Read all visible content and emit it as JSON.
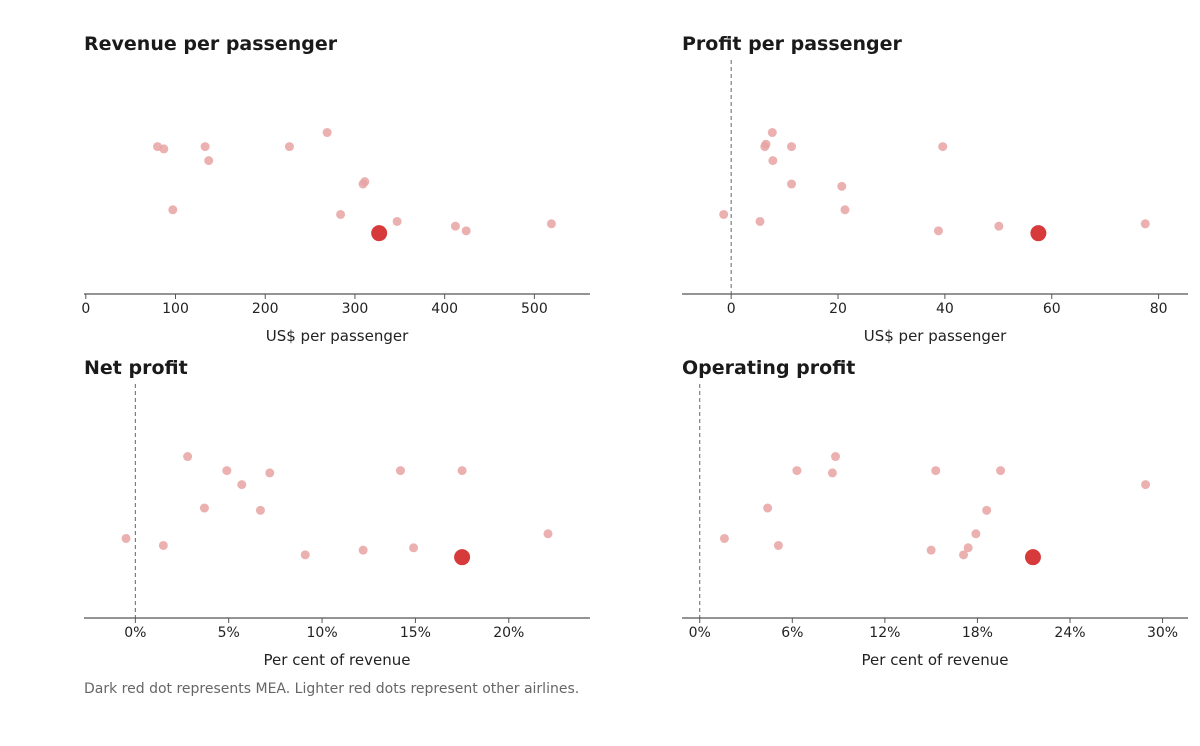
{
  "colors": {
    "highlight": "#d63a3a",
    "others": "#e8a3a3",
    "axis": "#555555",
    "zero_line": "#666666"
  },
  "footnote": "Dark red dot represents MEA. Lighter red dots represent other airlines.",
  "chart_data": [
    {
      "type": "scatter",
      "title": "Revenue per passenger",
      "xlabel": "US$ per passenger",
      "xlim": [
        -2,
        562
      ],
      "ylim": [
        0,
        1
      ],
      "x_ticks": [
        0,
        100,
        200,
        300,
        400,
        500
      ],
      "x_tick_labels": [
        "0",
        "100",
        "200",
        "300",
        "400",
        "500"
      ],
      "zero_line": false,
      "highlight": {
        "name": "MEA",
        "x": 327,
        "y": 0.26
      },
      "points": [
        {
          "x": 80,
          "y": 0.63
        },
        {
          "x": 87,
          "y": 0.62
        },
        {
          "x": 133,
          "y": 0.63
        },
        {
          "x": 137,
          "y": 0.57
        },
        {
          "x": 97,
          "y": 0.36
        },
        {
          "x": 227,
          "y": 0.63
        },
        {
          "x": 269,
          "y": 0.69
        },
        {
          "x": 309,
          "y": 0.47
        },
        {
          "x": 311,
          "y": 0.48
        },
        {
          "x": 284,
          "y": 0.34
        },
        {
          "x": 347,
          "y": 0.31
        },
        {
          "x": 412,
          "y": 0.29
        },
        {
          "x": 424,
          "y": 0.27
        },
        {
          "x": 519,
          "y": 0.3
        }
      ]
    },
    {
      "type": "scatter",
      "title": "Profit per passenger",
      "xlabel": "US$ per passenger",
      "xlim": [
        -9.2,
        85.5
      ],
      "ylim": [
        0,
        1
      ],
      "x_ticks": [
        0,
        20,
        40,
        60,
        80
      ],
      "x_tick_labels": [
        "0",
        "20",
        "40",
        "60",
        "80"
      ],
      "zero_line": true,
      "highlight": {
        "name": "MEA",
        "x": 57.5,
        "y": 0.26
      },
      "points": [
        {
          "x": -1.4,
          "y": 0.34
        },
        {
          "x": 6.3,
          "y": 0.63
        },
        {
          "x": 6.5,
          "y": 0.64
        },
        {
          "x": 7.7,
          "y": 0.69
        },
        {
          "x": 7.8,
          "y": 0.57
        },
        {
          "x": 11.3,
          "y": 0.63
        },
        {
          "x": 11.3,
          "y": 0.47
        },
        {
          "x": 5.4,
          "y": 0.31
        },
        {
          "x": 20.7,
          "y": 0.46
        },
        {
          "x": 21.3,
          "y": 0.36
        },
        {
          "x": 39.6,
          "y": 0.63
        },
        {
          "x": 38.8,
          "y": 0.27
        },
        {
          "x": 50.1,
          "y": 0.29
        },
        {
          "x": 77.5,
          "y": 0.3
        }
      ]
    },
    {
      "type": "scatter",
      "title": "Net profit",
      "xlabel": "Per cent of revenue",
      "xlim": [
        -2.75,
        24.35
      ],
      "ylim": [
        0,
        1
      ],
      "x_ticks": [
        0,
        5,
        10,
        15,
        20
      ],
      "x_tick_labels": [
        "0%",
        "5%",
        "10%",
        "15%",
        "20%"
      ],
      "zero_line": true,
      "highlight": {
        "name": "MEA",
        "x": 17.5,
        "y": 0.26
      },
      "points": [
        {
          "x": -0.5,
          "y": 0.34
        },
        {
          "x": 1.5,
          "y": 0.31
        },
        {
          "x": 2.8,
          "y": 0.69
        },
        {
          "x": 3.7,
          "y": 0.47
        },
        {
          "x": 4.9,
          "y": 0.63
        },
        {
          "x": 5.7,
          "y": 0.57
        },
        {
          "x": 6.7,
          "y": 0.46
        },
        {
          "x": 7.2,
          "y": 0.62
        },
        {
          "x": 9.1,
          "y": 0.27
        },
        {
          "x": 12.2,
          "y": 0.29
        },
        {
          "x": 14.2,
          "y": 0.63
        },
        {
          "x": 14.9,
          "y": 0.3
        },
        {
          "x": 17.5,
          "y": 0.63
        },
        {
          "x": 22.1,
          "y": 0.36
        }
      ]
    },
    {
      "type": "scatter",
      "title": "Operating profit",
      "xlabel": "Per cent of revenue",
      "xlim": [
        -1.15,
        31.65
      ],
      "ylim": [
        0,
        1
      ],
      "x_ticks": [
        0,
        6,
        12,
        18,
        24,
        30
      ],
      "x_tick_labels": [
        "0%",
        "6%",
        "12%",
        "18%",
        "24%",
        "30%"
      ],
      "zero_line": true,
      "highlight": {
        "name": "MEA",
        "x": 21.6,
        "y": 0.26
      },
      "points": [
        {
          "x": 1.6,
          "y": 0.34
        },
        {
          "x": 4.4,
          "y": 0.47
        },
        {
          "x": 5.1,
          "y": 0.31
        },
        {
          "x": 6.3,
          "y": 0.63
        },
        {
          "x": 8.6,
          "y": 0.62
        },
        {
          "x": 8.8,
          "y": 0.69
        },
        {
          "x": 15.0,
          "y": 0.29
        },
        {
          "x": 15.3,
          "y": 0.63
        },
        {
          "x": 17.1,
          "y": 0.27
        },
        {
          "x": 17.4,
          "y": 0.3
        },
        {
          "x": 17.9,
          "y": 0.36
        },
        {
          "x": 18.6,
          "y": 0.46
        },
        {
          "x": 19.5,
          "y": 0.63
        },
        {
          "x": 28.9,
          "y": 0.57
        }
      ]
    }
  ]
}
